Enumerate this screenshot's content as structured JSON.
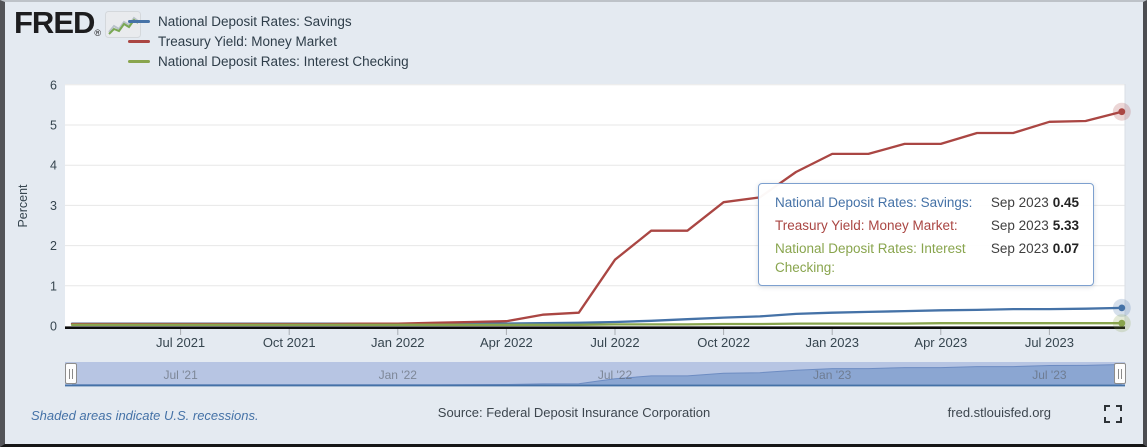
{
  "header": {
    "logo_text": "FRED",
    "logo_registered": "®",
    "legend": [
      {
        "label": "National Deposit Rates: Savings",
        "color": "#4572a7"
      },
      {
        "label": "Treasury Yield: Money Market",
        "color": "#aa4643"
      },
      {
        "label": "National Deposit Rates: Interest Checking",
        "color": "#89a54e"
      }
    ]
  },
  "chart_data": {
    "type": "line",
    "title": "",
    "ylabel": "Percent",
    "xlabel": "",
    "ylim": [
      0,
      6
    ],
    "yticks": [
      0,
      1,
      2,
      3,
      4,
      5,
      6
    ],
    "grid": true,
    "legend_position": "top-left",
    "categories": [
      "Apr 2021",
      "May 2021",
      "Jun 2021",
      "Jul 2021",
      "Aug 2021",
      "Sep 2021",
      "Oct 2021",
      "Nov 2021",
      "Dec 2021",
      "Jan 2022",
      "Feb 2022",
      "Mar 2022",
      "Apr 2022",
      "May 2022",
      "Jun 2022",
      "Jul 2022",
      "Aug 2022",
      "Sep 2022",
      "Oct 2022",
      "Nov 2022",
      "Dec 2022",
      "Jan 2023",
      "Feb 2023",
      "Mar 2023",
      "Apr 2023",
      "May 2023",
      "Jun 2023",
      "Jul 2023",
      "Aug 2023",
      "Sep 2023"
    ],
    "xtick_labels": [
      "Jul 2021",
      "Oct 2021",
      "Jan 2022",
      "Apr 2022",
      "Jul 2022",
      "Oct 2022",
      "Jan 2023",
      "Apr 2023",
      "Jul 2023"
    ],
    "xtick_indices": [
      3,
      6,
      9,
      12,
      15,
      18,
      21,
      24,
      27
    ],
    "slider_tick_indices": [
      3,
      9,
      15,
      21,
      27
    ],
    "series": [
      {
        "name": "National Deposit Rates: Savings",
        "color": "#4572a7",
        "values": [
          0.06,
          0.06,
          0.06,
          0.06,
          0.06,
          0.06,
          0.06,
          0.06,
          0.06,
          0.06,
          0.06,
          0.06,
          0.06,
          0.07,
          0.08,
          0.1,
          0.13,
          0.17,
          0.21,
          0.24,
          0.3,
          0.33,
          0.35,
          0.37,
          0.39,
          0.4,
          0.42,
          0.42,
          0.43,
          0.45
        ]
      },
      {
        "name": "Treasury Yield: Money Market",
        "color": "#aa4643",
        "values": [
          0.05,
          0.05,
          0.05,
          0.05,
          0.05,
          0.05,
          0.05,
          0.05,
          0.06,
          0.06,
          0.08,
          0.1,
          0.12,
          0.28,
          0.33,
          1.65,
          2.37,
          2.37,
          3.08,
          3.2,
          3.83,
          4.28,
          4.28,
          4.53,
          4.53,
          4.8,
          4.8,
          5.08,
          5.1,
          5.33
        ]
      },
      {
        "name": "National Deposit Rates: Interest Checking",
        "color": "#89a54e",
        "values": [
          0.03,
          0.03,
          0.03,
          0.03,
          0.03,
          0.03,
          0.03,
          0.03,
          0.03,
          0.03,
          0.03,
          0.03,
          0.03,
          0.03,
          0.03,
          0.04,
          0.04,
          0.04,
          0.05,
          0.05,
          0.06,
          0.06,
          0.06,
          0.06,
          0.07,
          0.07,
          0.07,
          0.07,
          0.07,
          0.07
        ]
      }
    ]
  },
  "tooltip": {
    "rows": [
      {
        "label": "National Deposit Rates: Savings:",
        "date": "Sep 2023",
        "value": "0.45",
        "color": "#4572a7"
      },
      {
        "label": "Treasury Yield: Money Market:",
        "date": "Sep 2023",
        "value": "5.33",
        "color": "#aa4643"
      },
      {
        "label": "National Deposit Rates: Interest Checking:",
        "date": "Sep 2023",
        "value": "0.07",
        "color": "#89a54e"
      }
    ]
  },
  "slider": {
    "labels": [
      "Jul '21",
      "Jan '22",
      "Jul '22",
      "Jan '23",
      "Jul '23"
    ]
  },
  "footer": {
    "note": "Shaded areas indicate U.S. recessions.",
    "source": "Source: Federal Deposit Insurance Corporation",
    "site": "fred.stlouisfed.org"
  },
  "colors": {
    "background": "#e4eaf1",
    "plot_bg": "#ffffff",
    "gridline": "#e7e7e7",
    "axis_text": "#36454f",
    "slider_band": "#b7c5e3",
    "slider_fill": "#8ba6d2",
    "slider_line": "#4572a7",
    "tooltip_border": "#7da0cf"
  }
}
